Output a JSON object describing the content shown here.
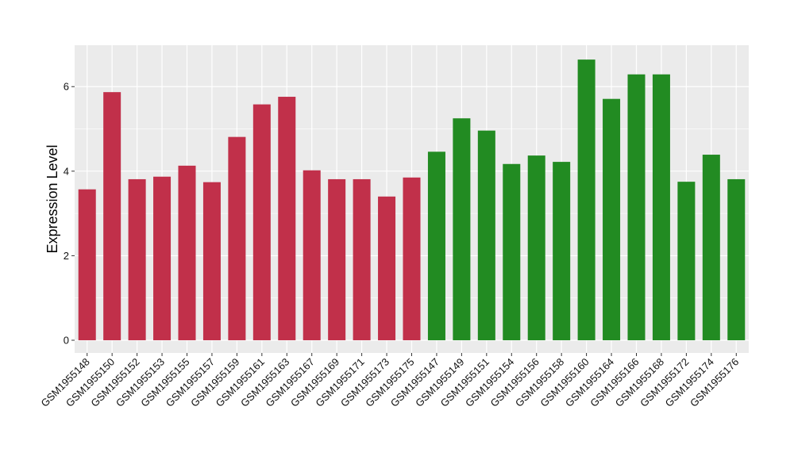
{
  "chart_data": {
    "type": "bar",
    "ylabel": "Expression Level",
    "xlabel": "",
    "ylim": [
      -0.3,
      6.98
    ],
    "yticks": [
      0,
      2,
      4,
      6
    ],
    "grid": true,
    "legend": "none",
    "colors": {
      "group1": "#C1304A",
      "group2": "#228B22",
      "panel": "#EBEBEB",
      "grid": "#FFFFFF"
    },
    "categories": [
      "GSM1955148",
      "GSM1955150",
      "GSM1955152",
      "GSM1955153",
      "GSM1955155",
      "GSM1955157",
      "GSM1955159",
      "GSM1955161",
      "GSM1955163",
      "GSM1955167",
      "GSM1955169",
      "GSM1955171",
      "GSM1955173",
      "GSM1955175",
      "GSM1955147",
      "GSM1955149",
      "GSM1955151",
      "GSM1955154",
      "GSM1955156",
      "GSM1955158",
      "GSM1955160",
      "GSM1955164",
      "GSM1955166",
      "GSM1955168",
      "GSM1955172",
      "GSM1955174",
      "GSM1955176"
    ],
    "values": [
      3.57,
      5.87,
      3.81,
      3.87,
      4.13,
      3.74,
      4.81,
      5.58,
      5.76,
      4.02,
      3.81,
      3.81,
      3.4,
      3.85,
      4.46,
      5.25,
      4.96,
      4.17,
      4.37,
      4.22,
      6.64,
      5.71,
      6.29,
      6.29,
      3.75,
      4.39,
      3.81
    ],
    "groups": [
      1,
      1,
      1,
      1,
      1,
      1,
      1,
      1,
      1,
      1,
      1,
      1,
      1,
      1,
      2,
      2,
      2,
      2,
      2,
      2,
      2,
      2,
      2,
      2,
      2,
      2,
      2
    ]
  }
}
